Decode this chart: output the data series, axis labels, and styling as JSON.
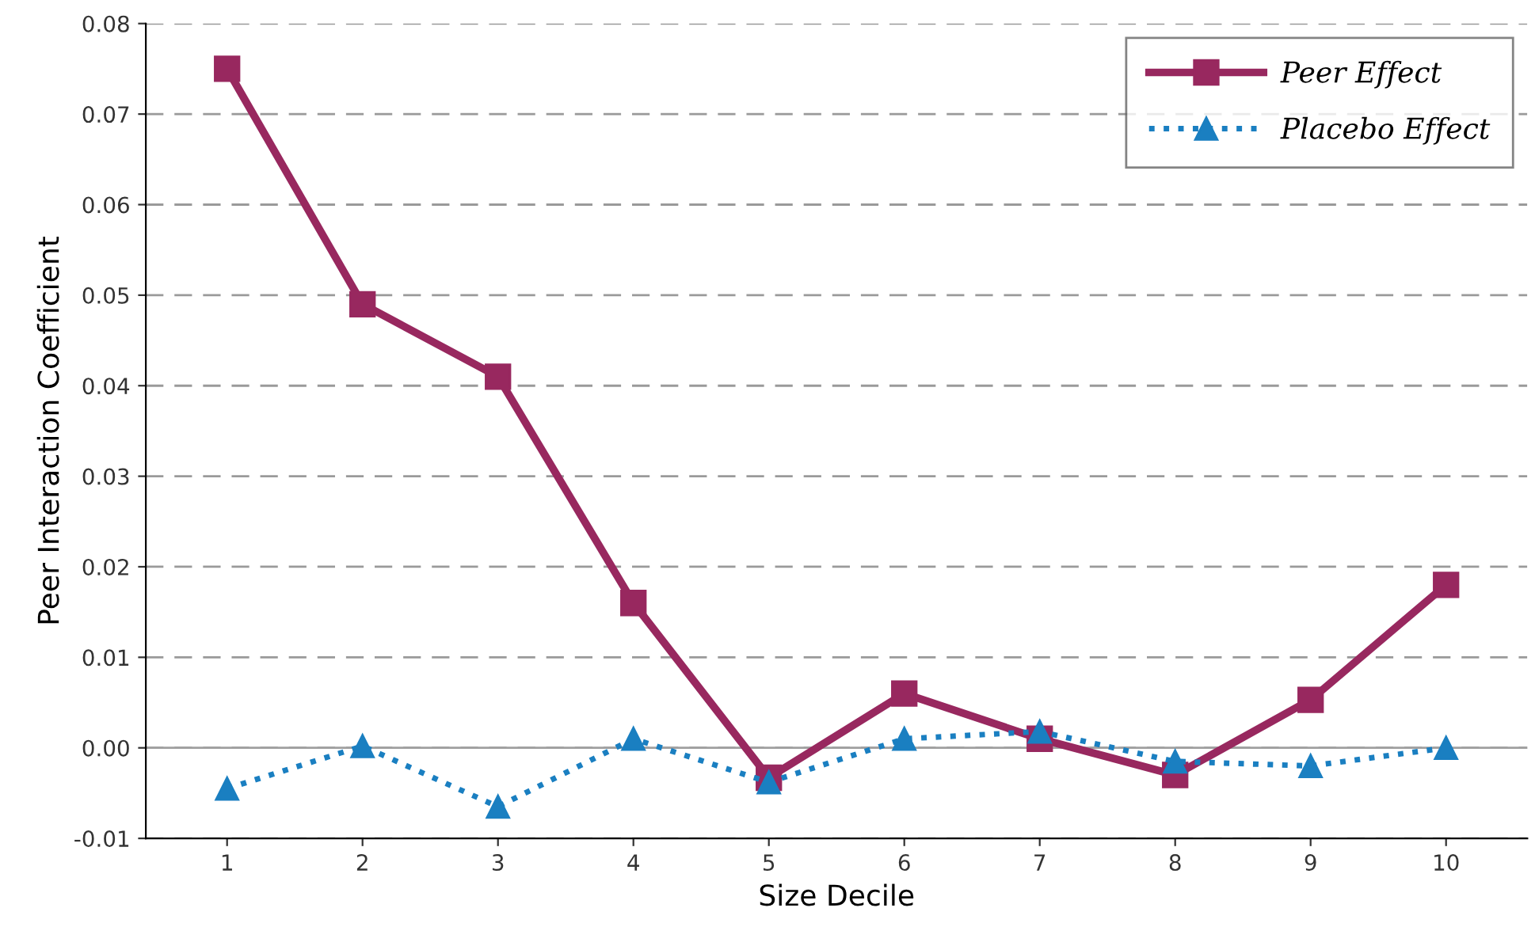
{
  "chart_data": {
    "type": "line",
    "xlabel": "Size Decile",
    "ylabel": "Peer Interaction Coefficient",
    "categories": [
      "1",
      "2",
      "3",
      "4",
      "5",
      "6",
      "7",
      "8",
      "9",
      "10"
    ],
    "series": [
      {
        "name": "Peer Effect",
        "color": "#98285f",
        "marker": "square",
        "line_style": "solid",
        "values": [
          0.075,
          0.049,
          0.041,
          0.016,
          -0.0033,
          0.006,
          0.001,
          -0.003,
          0.0053,
          0.018
        ]
      },
      {
        "name": "Placebo Effect",
        "color": "#1a7fc1",
        "marker": "triangle",
        "line_style": "dotted",
        "values": [
          -0.0045,
          0.0002,
          -0.0065,
          0.001,
          -0.0038,
          0.001,
          0.0018,
          -0.0015,
          -0.002,
          0.0
        ]
      }
    ],
    "ylim": [
      -0.01,
      0.08
    ],
    "yticks": [
      {
        "value": -0.01,
        "label": "-0.01"
      },
      {
        "value": 0.0,
        "label": "0.00"
      },
      {
        "value": 0.01,
        "label": "0.01"
      },
      {
        "value": 0.02,
        "label": "0.02"
      },
      {
        "value": 0.03,
        "label": "0.03"
      },
      {
        "value": 0.04,
        "label": "0.04"
      },
      {
        "value": 0.05,
        "label": "0.05"
      },
      {
        "value": 0.06,
        "label": "0.06"
      },
      {
        "value": 0.07,
        "label": "0.07"
      },
      {
        "value": 0.08,
        "label": "0.08"
      }
    ],
    "ref_lines": [
      {
        "axis": "y",
        "value": 0.0,
        "color": "#a0a0a0",
        "line_style": "solid"
      }
    ],
    "grid": "y",
    "legend": "top right"
  }
}
